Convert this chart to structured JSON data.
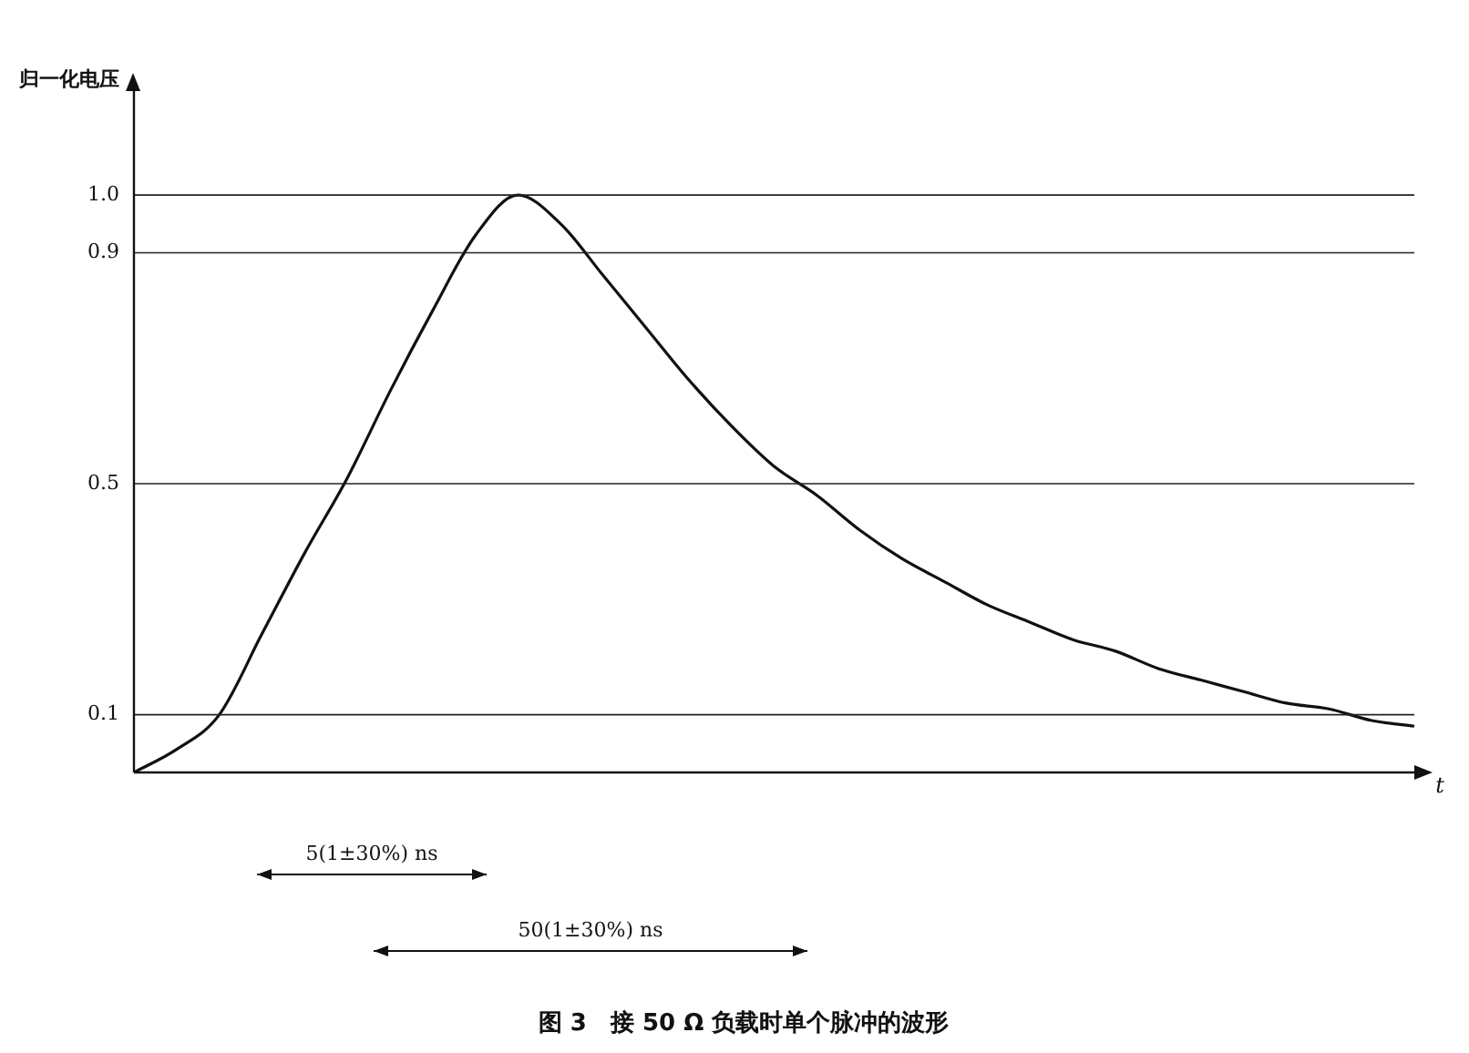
{
  "chart_data": {
    "type": "line",
    "title": "图 3　接 50 Ω 负载时单个脉冲的波形",
    "ylabel": "归一化电压",
    "xlabel": "t",
    "categories": [
      null,
      null,
      null,
      null,
      null,
      null,
      null,
      null,
      null,
      null,
      null,
      null,
      null,
      null,
      null,
      null,
      null,
      null,
      null,
      null,
      null,
      null,
      null,
      null,
      null,
      null,
      null,
      null,
      null,
      null,
      null
    ],
    "series": [
      {
        "color": "#111111",
        "values": [
          0,
          0.04,
          0.1,
          0.24,
          0.38,
          0.51,
          0.66,
          0.8,
          0.93,
          1.0,
          0.95,
          0.86,
          0.77,
          0.68,
          0.6,
          0.53,
          0.48,
          0.42,
          0.37,
          0.33,
          0.29,
          0.26,
          0.23,
          0.21,
          0.18,
          0.16,
          0.14,
          0.12,
          0.11,
          0.09,
          0.08
        ]
      }
    ],
    "ylim": [
      0,
      1.18
    ],
    "yticks": [
      0.1,
      0.5,
      0.9,
      {
        "value": 1,
        "label": "1.0"
      }
    ],
    "ref_lines": [
      {
        "axis": "y",
        "value": 0.1
      },
      {
        "axis": "y",
        "value": 0.5
      },
      {
        "axis": "y",
        "value": 0.9
      },
      {
        "axis": "y",
        "value": 1
      }
    ],
    "annotations": [
      "5(1±30%) ns",
      "50(1±30%) ns"
    ],
    "grid": false,
    "legend": false,
    "marker": "none",
    "line_style": "solid"
  }
}
